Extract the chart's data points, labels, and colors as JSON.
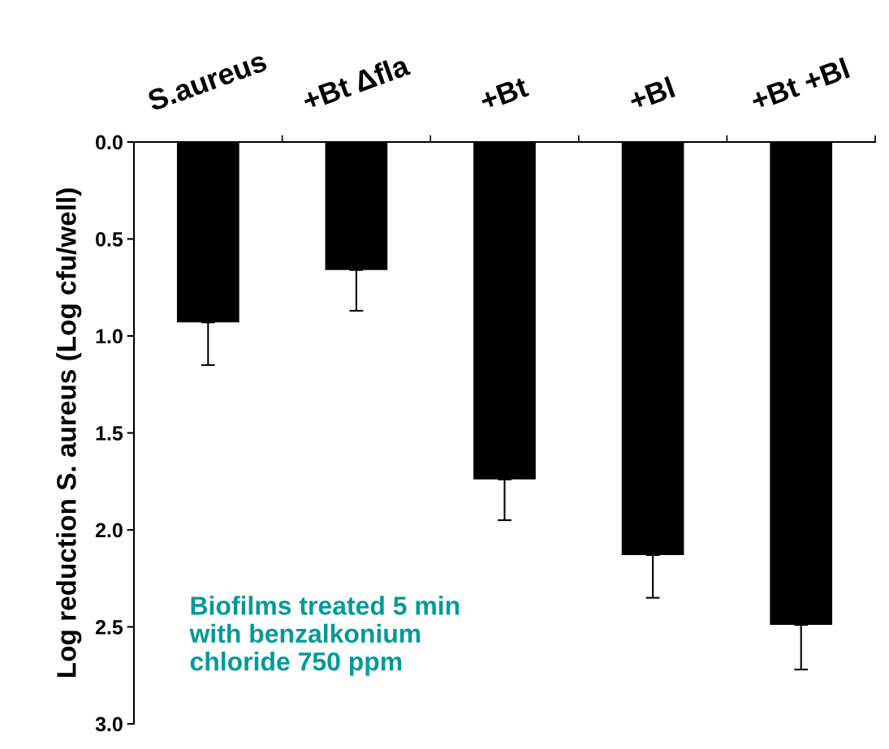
{
  "chart_data": {
    "type": "bar",
    "ylabel": "Log reduction S. aureus (Log cfu/well)",
    "categories": [
      "S.aureus",
      "+Bt Δfla",
      "+Bt",
      "+Bl",
      "+Bt +Bl"
    ],
    "values": [
      0.93,
      0.66,
      1.74,
      2.13,
      2.49
    ],
    "errors": [
      [
        0.93,
        1.15
      ],
      [
        0.66,
        0.87
      ],
      [
        1.74,
        1.95
      ],
      [
        2.13,
        2.35
      ],
      [
        2.49,
        2.72
      ]
    ],
    "color": "#000000",
    "ylim": [
      3.0,
      0.0
    ],
    "yticks": [
      {
        "value": 0,
        "label": "0.0"
      },
      {
        "value": 0.5,
        "label": "0.5"
      },
      {
        "value": 1,
        "label": "1.0"
      },
      {
        "value": 1.5,
        "label": "1.5"
      },
      {
        "value": 2,
        "label": "2.0"
      },
      {
        "value": 2.5,
        "label": "2.5"
      },
      {
        "value": 3,
        "label": "3.0"
      }
    ],
    "annotations": [
      "Biofilms treated 5 min\nwith benzalkonium\nchloride 750 ppm"
    ],
    "grid": false,
    "legend": false
  }
}
